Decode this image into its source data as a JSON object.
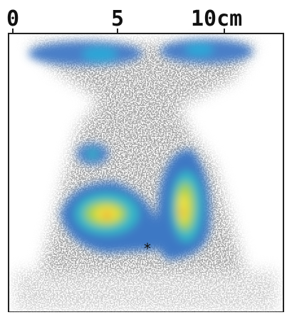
{
  "scale": {
    "labels": [
      "0",
      "5",
      "10cm"
    ]
  }
}
